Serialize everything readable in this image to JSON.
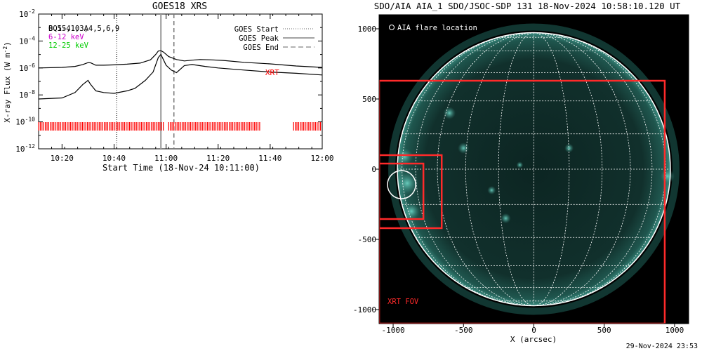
{
  "chart_data": [
    {
      "type": "line",
      "title": "GOES18 XRS",
      "xlabel": "Start Time (18-Nov-24 10:11:00)",
      "ylabel": "X-ray Flux (W m",
      "ylabel_sup": "-2",
      "ylabel_close": ")",
      "yscale": "log",
      "ylim": [
        1e-12,
        0.01
      ],
      "xlim": [
        "10:11",
        "12:00"
      ],
      "x_ticks": [
        "10:20",
        "10:40",
        "11:00",
        "11:20",
        "11:40",
        "12:00"
      ],
      "y_ticks": [
        {
          "base": "10",
          "exp": "-12",
          "value": 1e-12
        },
        {
          "base": "10",
          "exp": "-10",
          "value": 1e-10
        },
        {
          "base": "10",
          "exp": "-8",
          "value": 1e-08
        },
        {
          "base": "10",
          "exp": "-6",
          "value": 1e-06
        },
        {
          "base": "10",
          "exp": "-4",
          "value": 0.0001
        },
        {
          "base": "10",
          "exp": "-2",
          "value": 0.01
        }
      ],
      "channel_labels": [
        {
          "text": "6-12 keV",
          "color": "#cc00cc"
        },
        {
          "text": "12-25 keV",
          "color": "#00cc00"
        }
      ],
      "overlap_label_a": "0.5-4.0 A",
      "overlap_label_b": "BQ15,1,3,4,5,6,9",
      "event_legend": [
        {
          "label": "GOES Start",
          "style": "dotted"
        },
        {
          "label": "GOES Peak",
          "style": "solid"
        },
        {
          "label": "GOES End",
          "style": "dashed"
        }
      ],
      "event_times": {
        "start": "10:41",
        "peak": "10:58",
        "end": "11:03"
      },
      "xrt_label": "XRT",
      "colors": {
        "xrt": "#ff0000",
        "curves": "#000000",
        "peak_line": "#999999"
      },
      "series": [
        {
          "x": [
            "10:11",
            "10:20",
            "10:25",
            "10:28",
            "10:30",
            "10:31",
            "10:33",
            "10:36",
            "10:40",
            "10:45",
            "10:50",
            "10:54",
            "10:56",
            "10:57",
            "10:58",
            "10:59",
            "11:01",
            "11:04",
            "11:07",
            "11:10",
            "11:13",
            "11:17",
            "11:22",
            "11:30",
            "11:40",
            "11:50",
            "12:00"
          ],
          "values": [
            1e-06,
            1.1e-06,
            1.3e-06,
            1.8e-06,
            2.5e-06,
            2.4e-06,
            1.6e-06,
            1.6e-06,
            1.7e-06,
            1.9e-06,
            2.3e-06,
            4e-06,
            1e-05,
            1.8e-05,
            1.9e-05,
            1.5e-05,
            7e-06,
            4.2e-06,
            3.3e-06,
            3.8e-06,
            4.2e-06,
            4e-06,
            3.6e-06,
            2.6e-06,
            2e-06,
            1.4e-06,
            1.1e-06
          ]
        },
        {
          "x": [
            "10:11",
            "10:20",
            "10:25",
            "10:28",
            "10:30",
            "10:31",
            "10:33",
            "10:36",
            "10:40",
            "10:45",
            "10:48",
            "10:52",
            "10:55",
            "10:57",
            "10:58",
            "10:59",
            "11:00",
            "11:02",
            "11:04",
            "11:07",
            "11:10",
            "11:15",
            "11:20",
            "11:30",
            "11:40",
            "11:50",
            "12:00"
          ],
          "values": [
            5e-09,
            6e-09,
            1.5e-08,
            6e-08,
            1.2e-07,
            6e-08,
            2e-08,
            1.5e-08,
            1.3e-08,
            2e-08,
            3e-08,
            1.2e-07,
            5e-07,
            6e-06,
            1e-05,
            4e-06,
            1.6e-06,
            7e-07,
            4.5e-07,
            1.5e-06,
            1.8e-06,
            1.3e-06,
            1e-06,
            7e-07,
            5e-07,
            4e-07,
            3e-07
          ]
        }
      ],
      "xrt_segments": [
        [
          "10:11",
          "10:59"
        ],
        [
          "11:01",
          "11:36"
        ],
        [
          "11:49",
          "12:00"
        ]
      ]
    },
    {
      "type": "scatter",
      "title": "SDO/AIA AIA_1 SDO/JSOC-SDP 131 18-Nov-2024 10:58:10.120 UT",
      "xlabel": "X (arcsec)",
      "ylabel": "",
      "xlim": [
        -1100,
        1100
      ],
      "ylim": [
        -1100,
        1100
      ],
      "x_ticks": [
        "-1000",
        "-500",
        "0",
        "500",
        "1000"
      ],
      "y_ticks": [
        "1000",
        "500",
        "0",
        "-500",
        "-1000"
      ],
      "legend_label": "AIA flare location",
      "flare_location": {
        "x": -940,
        "y": -110,
        "radius": 100
      },
      "xrt_fov_label": "XRT FOV",
      "xrt_fov": {
        "x0": -1100,
        "x1": 930,
        "y0": -1100,
        "y1": 630
      },
      "xrt_boxes": [
        {
          "x0": -1100,
          "x1": -655,
          "y0": -420,
          "y1": 100
        },
        {
          "x0": -1100,
          "x1": -785,
          "y0": -355,
          "y1": 40
        }
      ],
      "solar_radius": 970,
      "colors": {
        "sun": "#4fb4a8",
        "grid": "#ffffff",
        "xrt": "#ff2a2a",
        "background": "#000000"
      }
    }
  ],
  "timestamp": "29-Nov-2024 23:53"
}
